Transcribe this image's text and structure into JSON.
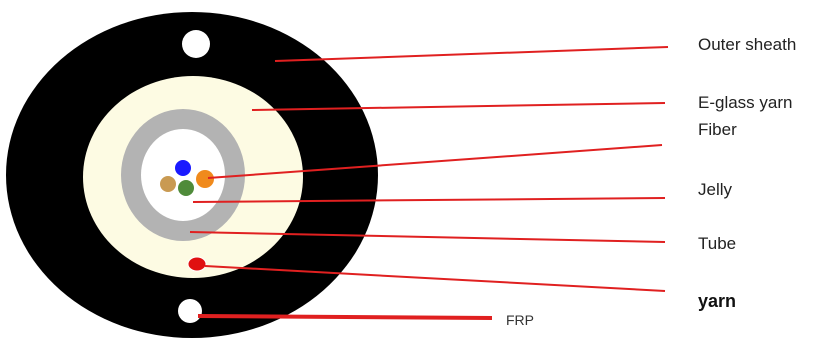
{
  "labels": {
    "outer_sheath": "Outer sheath",
    "eglass_yarn": "E-glass yarn",
    "fiber": "Fiber",
    "jelly": "Jelly",
    "tube": "Tube",
    "yarn": "yarn",
    "frp": "FRP"
  },
  "colors": {
    "outer_sheath": "#000000",
    "eglass_yarn": "#fdfbe3",
    "tube": "#b3b3b3",
    "jelly": "#ffffff",
    "fiber_blue": "#1a1aff",
    "fiber_orange": "#f08a1c",
    "fiber_tan": "#c99a52",
    "fiber_green": "#4f8b3a",
    "red_yarn": "#e01010",
    "leader_line": "#e02020",
    "frp_holes": "#ffffff"
  }
}
